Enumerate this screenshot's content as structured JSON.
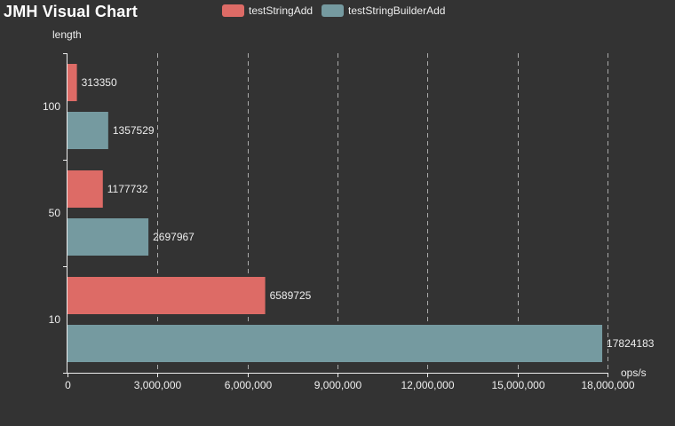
{
  "colors": {
    "background": "#333333",
    "testStringAdd": "#dd6b66",
    "testStringBuilderAdd": "#759aa0",
    "axis": "#eeeeee",
    "grid": "#aaaaaa"
  },
  "chart_data": {
    "type": "bar",
    "orientation": "horizontal",
    "title": "JMH Visual Chart",
    "xlabel": "ops/s",
    "ylabel": "length",
    "categories": [
      "10",
      "50",
      "100"
    ],
    "series": [
      {
        "name": "testStringAdd",
        "values": [
          6589725,
          1177732,
          313350
        ]
      },
      {
        "name": "testStringBuilderAdd",
        "values": [
          17824183,
          2697967,
          1357529
        ]
      }
    ],
    "xlim": [
      0,
      18000000
    ],
    "xticks": [
      0,
      3000000,
      6000000,
      9000000,
      12000000,
      15000000,
      18000000
    ],
    "xtick_labels": [
      "0",
      "3,000,000",
      "6,000,000",
      "9,000,000",
      "12,000,000",
      "15,000,000",
      "18,000,000"
    ],
    "grid": "vertical-dashed",
    "legend_position": "top-center"
  }
}
